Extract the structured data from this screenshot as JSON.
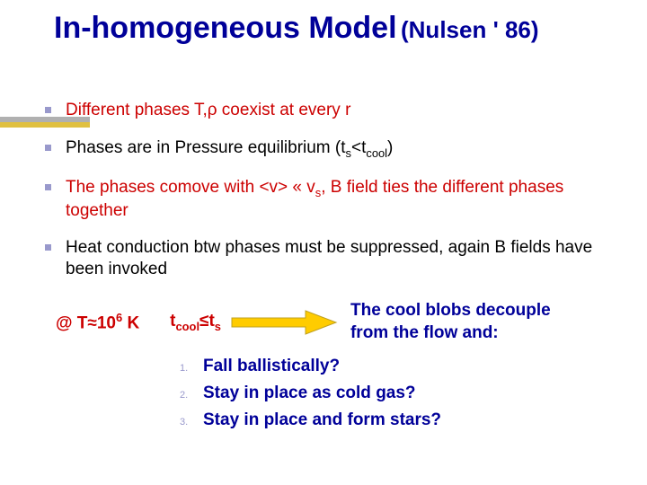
{
  "title": {
    "main": "In-homogeneous Model",
    "sub": "(Nulsen ' 86)",
    "main_color": "#000099",
    "sub_color": "#000099",
    "main_fontsize": 34,
    "sub_fontsize": 26
  },
  "rules": {
    "top_color": "#b0b0b0",
    "bottom_color": "#e0c040"
  },
  "bullets": [
    {
      "html": "Different phases T,ρ coexist at every r",
      "color": "#cc0000"
    },
    {
      "html": "Phases are in Pressure equilibrium (t<sub>s</sub>&lt;t<sub>cool</sub>)",
      "color": "#000000"
    },
    {
      "html": "The phases comove with &lt;v&gt; « v<sub>s</sub>, B field ties the different phases together",
      "color": "#cc0000"
    },
    {
      "html": "Heat conduction btw phases must be suppressed, again B fields have been invoked",
      "color": "#000000"
    }
  ],
  "condition": {
    "at_label": "@ T≈10<sup>6</sup> K",
    "inequality": "t<sub>cool</sub>≤t<sub>s</sub>",
    "at_color": "#cc0000",
    "arrow": {
      "fill": "#ffcc00",
      "stroke": "#bfa020",
      "width": 120,
      "height": 30
    },
    "result_line1": "The cool blobs decouple",
    "result_line2": "from the flow and:",
    "result_color": "#000099"
  },
  "numbered": [
    {
      "n": "1.",
      "text": "Fall ballistically?"
    },
    {
      "n": "2.",
      "text": "Stay in place as cold gas?"
    },
    {
      "n": "3.",
      "text": "Stay in place and form stars?"
    }
  ],
  "numbered_color": "#000099",
  "numbered_index_color": "#9999cc"
}
